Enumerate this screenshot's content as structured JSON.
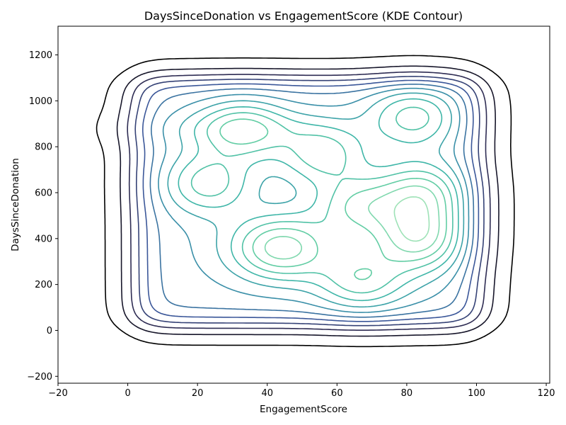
{
  "chart_data": {
    "type": "contour",
    "title": "DaysSinceDonation vs EngagementScore (KDE Contour)",
    "xlabel": "EngagementScore",
    "ylabel": "DaysSinceDonation",
    "xlim": [
      -20,
      121
    ],
    "ylim": [
      -230,
      1325
    ],
    "xticks": [
      -20,
      0,
      20,
      40,
      60,
      80,
      100,
      120
    ],
    "yticks": [
      -200,
      0,
      200,
      400,
      600,
      800,
      1000,
      1200
    ],
    "grid": false,
    "legend": "none",
    "levels": 13,
    "colormap": [
      "#000000",
      "#2e2c53",
      "#3b5799",
      "#3a8fa8",
      "#3fb6a8",
      "#62cda4",
      "#9ee2b7"
    ],
    "peaks": [
      {
        "x": 23,
        "y": 640
      },
      {
        "x": 33,
        "y": 870
      },
      {
        "x": 56,
        "y": 770
      },
      {
        "x": 44,
        "y": 360
      },
      {
        "x": 66,
        "y": 540
      },
      {
        "x": 67,
        "y": 220
      },
      {
        "x": 83,
        "y": 400
      },
      {
        "x": 84,
        "y": 600
      },
      {
        "x": 82,
        "y": 930
      }
    ]
  }
}
